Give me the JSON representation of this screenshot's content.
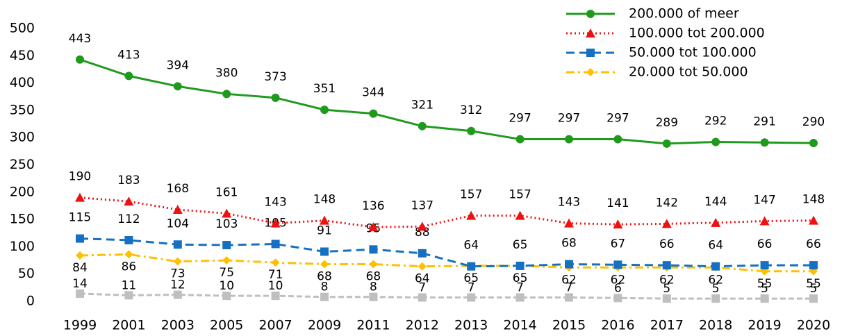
{
  "chart_data": {
    "type": "line",
    "categories": [
      "1999",
      "2001",
      "2003",
      "2005",
      "2007",
      "2009",
      "2011",
      "2012",
      "2013",
      "2014",
      "2015",
      "2016",
      "2017",
      "2018",
      "2019",
      "2020"
    ],
    "series": [
      {
        "name": "200.000 of meer",
        "color": "#1f9a1f",
        "values": [
          443,
          413,
          394,
          380,
          373,
          351,
          344,
          321,
          312,
          297,
          297,
          297,
          289,
          292,
          291,
          290
        ]
      },
      {
        "name": "100.000 tot 200.000",
        "color": "#ee1111",
        "values": [
          190,
          183,
          168,
          161,
          143,
          148,
          136,
          137,
          157,
          157,
          143,
          141,
          142,
          144,
          147,
          148
        ]
      },
      {
        "name": "50.000 tot 100.000",
        "color": "#1670c2",
        "values": [
          115,
          112,
          104,
          103,
          105,
          91,
          95,
          88,
          64,
          65,
          68,
          67,
          66,
          64,
          66,
          66
        ]
      },
      {
        "name": "20.000 tot 50.000",
        "color": "#ffc000",
        "values": [
          84,
          86,
          73,
          75,
          71,
          68,
          68,
          64,
          65,
          65,
          62,
          62,
          62,
          62,
          55,
          55
        ]
      },
      {
        "color": "#bfbfbf",
        "values": [
          14,
          11,
          12,
          10,
          10,
          8,
          8,
          7,
          7,
          7,
          7,
          6,
          5,
          5,
          5,
          5
        ]
      }
    ],
    "ylim": [
      0,
      500
    ],
    "yticks": [
      0,
      50,
      100,
      150,
      200,
      250,
      300,
      350,
      400,
      450,
      500
    ],
    "grid": false
  }
}
